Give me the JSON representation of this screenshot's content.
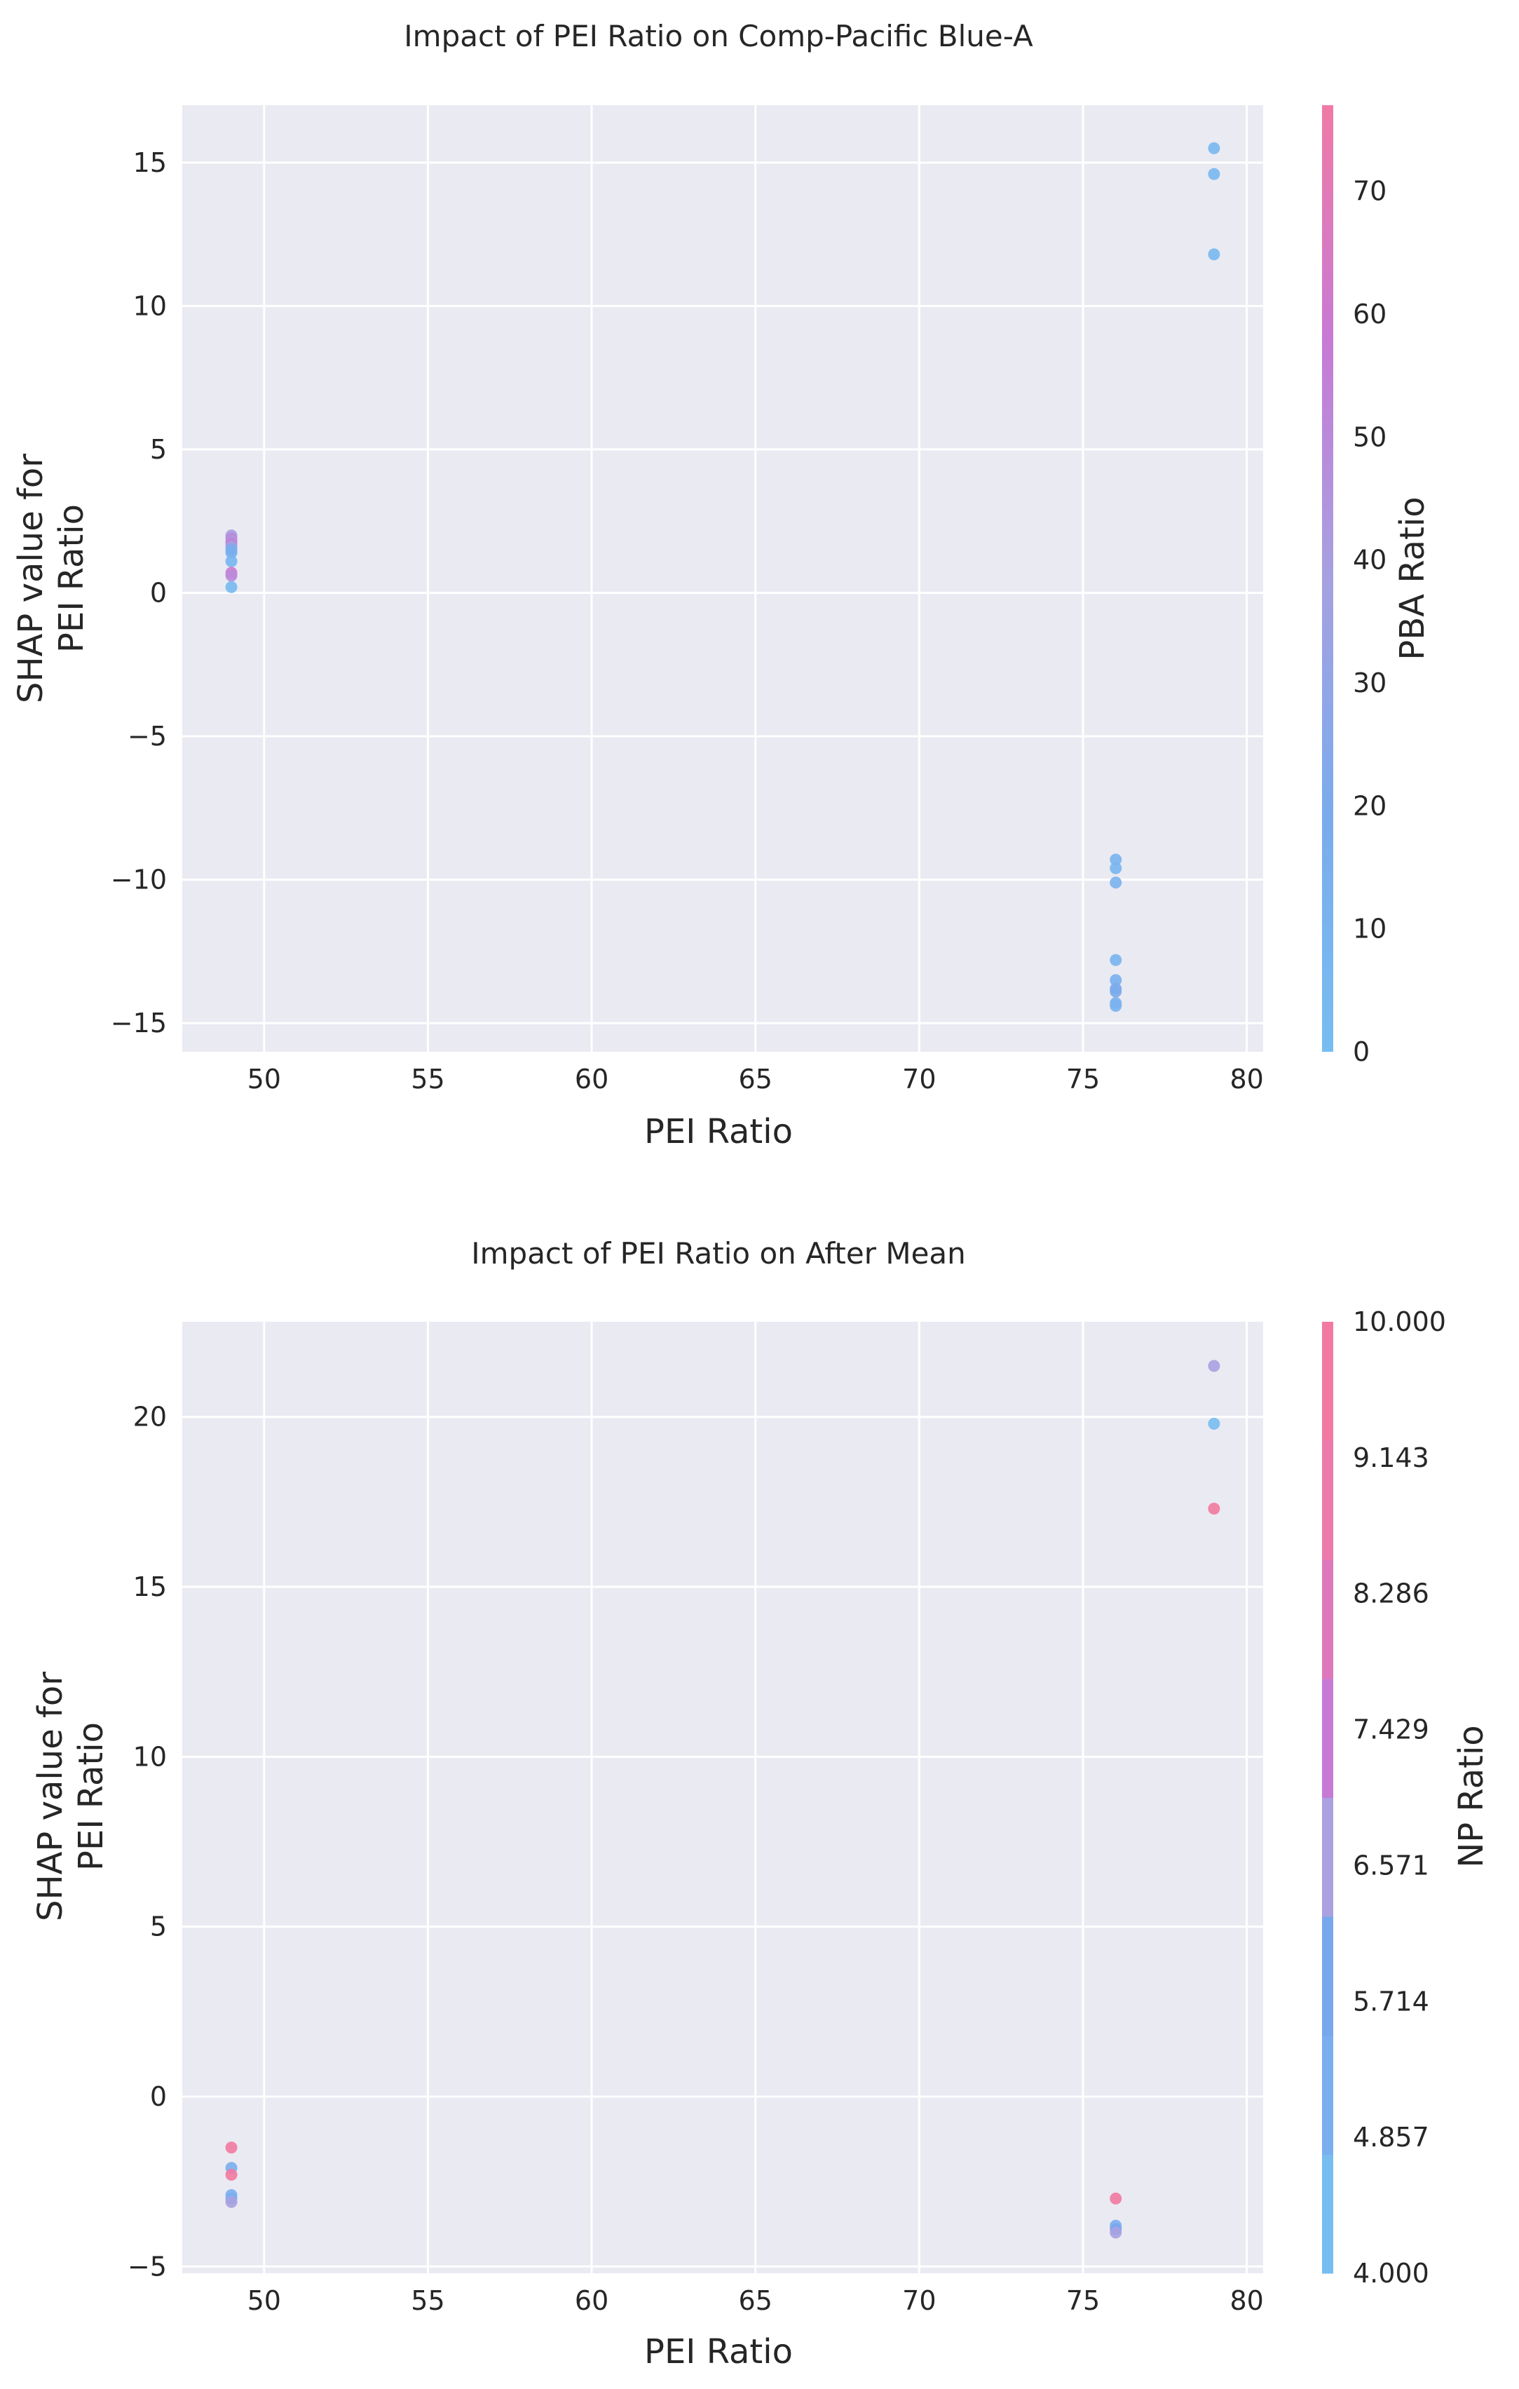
{
  "chart_data": [
    {
      "type": "scatter",
      "title": "Impact of PEI Ratio on Comp-Pacific Blue-A",
      "xlabel": "PEI Ratio",
      "ylabel_line1": "SHAP value for",
      "ylabel_line2": "PEI Ratio",
      "xlim": [
        47.5,
        80.5
      ],
      "ylim": [
        -16,
        17
      ],
      "xticks": [
        50,
        55,
        60,
        65,
        70,
        75,
        80
      ],
      "xtick_labels": [
        "50",
        "55",
        "60",
        "65",
        "70",
        "75",
        "80"
      ],
      "yticks": [
        -15,
        -10,
        -5,
        0,
        5,
        10,
        15
      ],
      "ytick_labels": [
        "−15",
        "−10",
        "−5",
        "0",
        "5",
        "10",
        "15"
      ],
      "grid": true,
      "colorbar": {
        "label": "PBA Ratio",
        "min": 0,
        "max": 77,
        "ticks": [
          0,
          10,
          20,
          30,
          40,
          50,
          60,
          70
        ],
        "tick_labels": [
          "0",
          "10",
          "20",
          "30",
          "40",
          "50",
          "60",
          "70"
        ],
        "colors": [
          "#77bdf0",
          "#7aabed",
          "#a6a1e0",
          "#c77ad5",
          "#f07aa5"
        ]
      },
      "points": [
        {
          "x": 79,
          "y": 15.5,
          "c": 5
        },
        {
          "x": 79,
          "y": 14.6,
          "c": 5
        },
        {
          "x": 79,
          "y": 11.8,
          "c": 5
        },
        {
          "x": 49,
          "y": 2.0,
          "c": 40
        },
        {
          "x": 49,
          "y": 1.9,
          "c": 50
        },
        {
          "x": 49,
          "y": 1.8,
          "c": 45
        },
        {
          "x": 49,
          "y": 1.7,
          "c": 55
        },
        {
          "x": 49,
          "y": 1.6,
          "c": 35
        },
        {
          "x": 49,
          "y": 1.5,
          "c": 20
        },
        {
          "x": 49,
          "y": 1.4,
          "c": 15
        },
        {
          "x": 49,
          "y": 1.1,
          "c": 8
        },
        {
          "x": 49,
          "y": 0.7,
          "c": 60
        },
        {
          "x": 49,
          "y": 0.6,
          "c": 50
        },
        {
          "x": 49,
          "y": 0.2,
          "c": 3
        },
        {
          "x": 76,
          "y": -9.3,
          "c": 10
        },
        {
          "x": 76,
          "y": -9.6,
          "c": 8
        },
        {
          "x": 76,
          "y": -10.1,
          "c": 12
        },
        {
          "x": 76,
          "y": -12.8,
          "c": 10
        },
        {
          "x": 76,
          "y": -13.5,
          "c": 15
        },
        {
          "x": 76,
          "y": -13.8,
          "c": 18
        },
        {
          "x": 76,
          "y": -13.9,
          "c": 20
        },
        {
          "x": 76,
          "y": -14.3,
          "c": 15
        },
        {
          "x": 76,
          "y": -14.4,
          "c": 12
        }
      ]
    },
    {
      "type": "scatter",
      "title": "Impact of PEI Ratio on After Mean",
      "xlabel": "PEI Ratio",
      "ylabel_line1": "SHAP value for",
      "ylabel_line2": "PEI Ratio",
      "xlim": [
        47.5,
        80.5
      ],
      "ylim": [
        -5.2,
        22.8
      ],
      "xticks": [
        50,
        55,
        60,
        65,
        70,
        75,
        80
      ],
      "xtick_labels": [
        "50",
        "55",
        "60",
        "65",
        "70",
        "75",
        "80"
      ],
      "yticks": [
        -5,
        0,
        5,
        10,
        15,
        20
      ],
      "ytick_labels": [
        "−5",
        "0",
        "5",
        "10",
        "15",
        "20"
      ],
      "grid": true,
      "colorbar": {
        "label": "NP Ratio",
        "min": 4,
        "max": 10,
        "ticks": [
          4.0,
          4.857,
          5.714,
          6.571,
          7.429,
          8.286,
          9.143,
          10.0
        ],
        "tick_labels": [
          "4.000",
          "4.857",
          "5.714",
          "6.571",
          "7.429",
          "8.286",
          "9.143",
          "10.000"
        ],
        "bands": [
          "#77bdf0",
          "#7aaeee",
          "#77a7ec",
          "#a9a1e0",
          "#c77ad5",
          "#de78bd",
          "#ec7aab",
          "#f27aa0"
        ]
      },
      "points": [
        {
          "x": 79,
          "y": 21.5,
          "c": 6.5
        },
        {
          "x": 79,
          "y": 19.8,
          "c": 4.5
        },
        {
          "x": 79,
          "y": 17.3,
          "c": 9.5
        },
        {
          "x": 49,
          "y": -1.5,
          "c": 9.5
        },
        {
          "x": 49,
          "y": -2.1,
          "c": 5.0
        },
        {
          "x": 49,
          "y": -2.3,
          "c": 9.9
        },
        {
          "x": 49,
          "y": -2.9,
          "c": 5.3
        },
        {
          "x": 49,
          "y": -3.0,
          "c": 5.0
        },
        {
          "x": 49,
          "y": -3.1,
          "c": 6.6
        },
        {
          "x": 76,
          "y": -3.0,
          "c": 9.9
        },
        {
          "x": 76,
          "y": -3.8,
          "c": 5.0
        },
        {
          "x": 76,
          "y": -3.9,
          "c": 5.5
        },
        {
          "x": 76,
          "y": -4.0,
          "c": 6.4
        }
      ]
    }
  ]
}
